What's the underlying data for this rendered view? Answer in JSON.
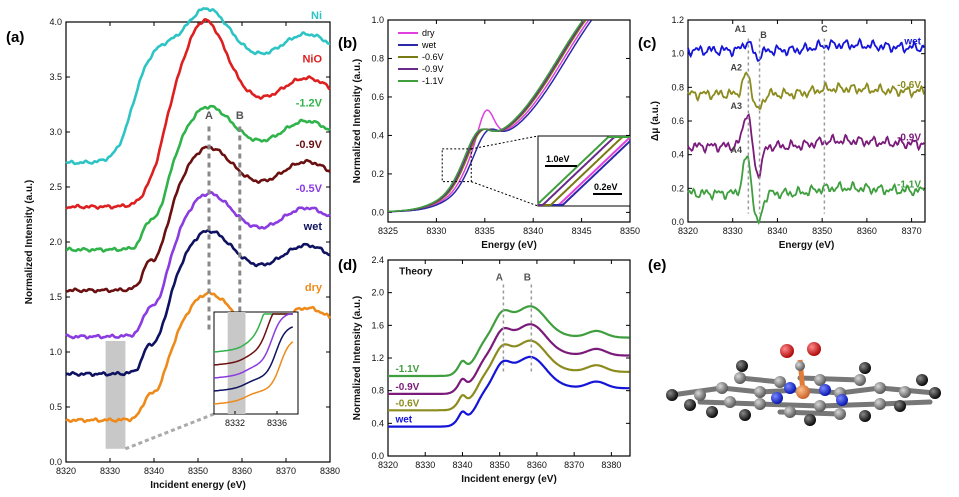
{
  "panels": {
    "a": "(a)",
    "b": "(b)",
    "c": "(c)",
    "d": "(d)",
    "e": "(e)"
  },
  "chart_data": [
    {
      "id": "a",
      "type": "line",
      "xlabel": "Incident energy (eV)",
      "ylabel": "Normalized Intensity (a.u.)",
      "xlim": [
        8320,
        8380
      ],
      "ylim": [
        0.0,
        4.0
      ],
      "xticks": [
        "8320",
        "8330",
        "8340",
        "8350",
        "8360",
        "8370",
        "8380"
      ],
      "yticks": [
        "0.0",
        "0.5",
        "1.0",
        "1.5",
        "2.0",
        "2.5",
        "3.0",
        "3.5",
        "4.0"
      ],
      "markers": [
        {
          "label": "A",
          "x": 8352.5
        },
        {
          "label": "B",
          "x": 8359.5
        }
      ],
      "highlight": [
        8329,
        8333.5
      ],
      "series": [
        {
          "name": "Ni",
          "color": "#2ec4c4",
          "offset": 2.72,
          "jump": 1.0,
          "e0": 8335.0,
          "pre": 0.0,
          "wl": 0.25
        },
        {
          "name": "NiO",
          "color": "#dd1f1f",
          "offset": 2.32,
          "jump": 1.0,
          "e0": 8342.0,
          "pre": 0.03,
          "wl": 0.55
        },
        {
          "name": "-1.2V",
          "color": "#2fb34a",
          "offset": 1.93,
          "jump": 1.0,
          "e0": 8343.0,
          "pre": 0.14,
          "wl": 0.15
        },
        {
          "name": "-0.9V",
          "color": "#6b1010",
          "offset": 1.56,
          "jump": 1.0,
          "e0": 8343.0,
          "pre": 0.14,
          "wl": 0.15
        },
        {
          "name": "-0.5V",
          "color": "#8a3ce0",
          "offset": 1.14,
          "jump": 1.0,
          "e0": 8343.0,
          "pre": 0.14,
          "wl": 0.15
        },
        {
          "name": "wet",
          "color": "#0e1260",
          "offset": 0.8,
          "jump": 1.0,
          "e0": 8343.0,
          "pre": 0.14,
          "wl": 0.15
        },
        {
          "name": "dry",
          "color": "#ee8a1a",
          "offset": 0.38,
          "jump": 0.85,
          "e0": 8343.0,
          "pre": 0.12,
          "wl": 0.15
        }
      ],
      "inset": {
        "xlim": [
          8330,
          8338
        ],
        "xticks": [
          "8332",
          "8336"
        ]
      }
    },
    {
      "id": "b",
      "type": "line",
      "xlabel": "Energy (eV)",
      "ylabel": "Normalized Intensity (a.u.)",
      "xlim": [
        8325,
        8350
      ],
      "ylim": [
        -0.05,
        1.0
      ],
      "xticks": [
        "8325",
        "8330",
        "8335",
        "8340",
        "8345",
        "8350"
      ],
      "yticks": [
        "0.0",
        "0.2",
        "0.4",
        "0.6",
        "0.8",
        "1.0"
      ],
      "series": [
        {
          "name": "dry",
          "color": "#e040e0",
          "shift": 0.6
        },
        {
          "name": "wet",
          "color": "#2a2aa8",
          "shift": 0.9
        },
        {
          "name": "-0.6V",
          "color": "#7a7a12",
          "shift": 0.3
        },
        {
          "name": "-0.9V",
          "color": "#6a2a8a",
          "shift": 0.15
        },
        {
          "name": "-1.1V",
          "color": "#3f9f3f",
          "shift": 0.0
        }
      ],
      "inset_labels": [
        "1.0eV",
        "0.2eV"
      ]
    },
    {
      "id": "c",
      "type": "line",
      "xlabel": "Energy (eV)",
      "ylabel": "Δμ (a.u.)",
      "xlim": [
        8320,
        8373
      ],
      "ylim": [
        0.0,
        1.2
      ],
      "xticks": [
        "8320",
        "8330",
        "8340",
        "8350",
        "8360",
        "8370"
      ],
      "yticks": [
        "0.0",
        "0.2",
        "0.4",
        "0.6",
        "0.8",
        "1.0",
        "1.2"
      ],
      "markers": [
        {
          "label": "A1",
          "x": 8333.5
        },
        {
          "label": "B",
          "x": 8336
        },
        {
          "label": "C",
          "x": 8350.5
        }
      ],
      "peak_labels": [
        "A2",
        "A3",
        "A4"
      ],
      "series": [
        {
          "name": "wet",
          "color": "#1414d8",
          "offset": 1.02,
          "amp": 0.05
        },
        {
          "name": "-0.6V",
          "color": "#8b8b1e",
          "offset": 0.76,
          "amp": 0.12
        },
        {
          "name": "-0.9V",
          "color": "#7a1a7a",
          "offset": 0.45,
          "amp": 0.2
        },
        {
          "name": "-1.1V",
          "color": "#3f9f3f",
          "offset": 0.17,
          "amp": 0.22
        }
      ]
    },
    {
      "id": "d",
      "type": "line",
      "title": "Theory",
      "xlabel": "Incident energy (eV)",
      "ylabel": "Normalized Intensity (a.u.)",
      "xlim": [
        8320,
        8385
      ],
      "ylim": [
        0.0,
        2.4
      ],
      "xticks": [
        "8320",
        "8330",
        "8340",
        "8350",
        "8360",
        "8370",
        "8380"
      ],
      "yticks": [
        "0.0",
        "0.4",
        "0.8",
        "1.2",
        "1.6",
        "2.0",
        "2.4"
      ],
      "markers": [
        {
          "label": "A",
          "x": 8351
        },
        {
          "label": "B",
          "x": 8358.5
        }
      ],
      "series": [
        {
          "name": "-1.1V",
          "color": "#3f9f3f",
          "offset": 0.98
        },
        {
          "name": "-0.9V",
          "color": "#7a1a7a",
          "offset": 0.76
        },
        {
          "name": "-0.6V",
          "color": "#8b8b1e",
          "offset": 0.56
        },
        {
          "name": "wet",
          "color": "#1414d8",
          "offset": 0.36
        }
      ]
    }
  ]
}
